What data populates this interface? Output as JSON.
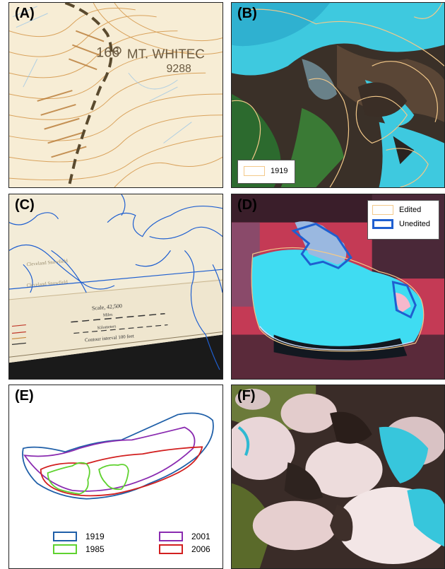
{
  "panels": {
    "a": {
      "label": "(A)",
      "peak_number": "166",
      "peak_name": "MT. WHITEC",
      "elevation": "9288"
    },
    "b": {
      "label": "(B)",
      "legend_text": "1919",
      "legend_color": "#f3c98a"
    },
    "c": {
      "label": "(C)",
      "scale_text": "Scale, 42,500",
      "miles_text": "Miles",
      "km_text": "Kilometers",
      "contour_text": "Contour interval 100 feet",
      "snowfield_label_1": "Cleveland Snowfield",
      "snowfield_label_2": "Cleveland Snowfield",
      "outline_color": "#1f5fd0"
    },
    "d": {
      "label": "(D)",
      "legend": [
        {
          "text": "Edited",
          "color": "#f3c98a"
        },
        {
          "text": "Unedited",
          "color": "#1f5fd0"
        }
      ]
    },
    "e": {
      "label": "(E)",
      "legend": [
        {
          "text": "1919",
          "color": "#1f5fa8"
        },
        {
          "text": "2001",
          "color": "#8a2bb0"
        },
        {
          "text": "1985",
          "color": "#5fd22f"
        },
        {
          "text": "2006",
          "color": "#d21f1f"
        }
      ]
    },
    "f": {
      "label": "(F)"
    }
  }
}
